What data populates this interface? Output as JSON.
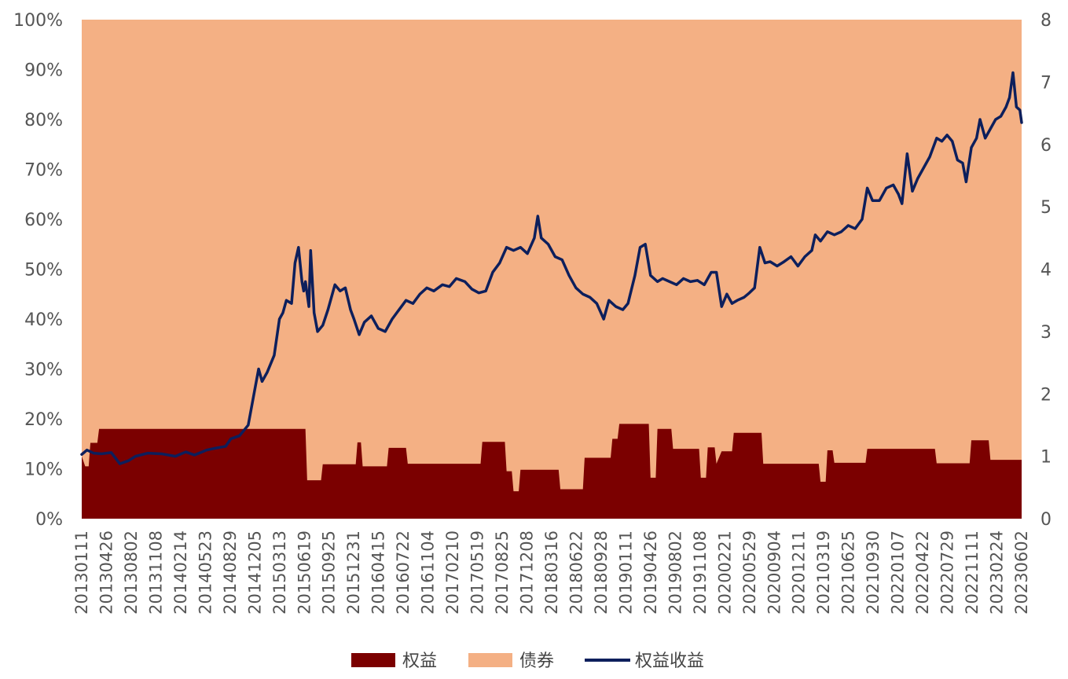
{
  "chart_data": {
    "type": "area",
    "title": "",
    "colors": {
      "equity": "#7b0000",
      "bond": "#f4b084",
      "equity_return": "#0d1f5c"
    },
    "legend_position": "bottom",
    "grid": false,
    "y_left": {
      "range": [
        0,
        100
      ],
      "ticks": [
        "0%",
        "10%",
        "20%",
        "30%",
        "40%",
        "50%",
        "60%",
        "70%",
        "80%",
        "90%",
        "100%"
      ]
    },
    "y_right": {
      "range": [
        0,
        8
      ],
      "ticks": [
        "0",
        "1",
        "2",
        "3",
        "4",
        "5",
        "6",
        "7",
        "8"
      ]
    },
    "x_range": [
      "2013-01-11",
      "2023-06-02"
    ],
    "x_ticks": [
      "20130111",
      "20130426",
      "20130802",
      "20131108",
      "20140214",
      "20140523",
      "20140829",
      "20141205",
      "20150313",
      "20150619",
      "20150925",
      "20151231",
      "20160415",
      "20160722",
      "20161104",
      "20170210",
      "20170519",
      "20170825",
      "20171208",
      "20180316",
      "20180622",
      "20180928",
      "20190111",
      "20190426",
      "20190802",
      "20191108",
      "20200221",
      "20200529",
      "20200904",
      "20201211",
      "20210319",
      "20210625",
      "20210930",
      "20220107",
      "20220422",
      "20220729",
      "20221111",
      "20230224",
      "20230602"
    ],
    "series": [
      {
        "name": "权益",
        "kind": "stacked-area",
        "points": [
          [
            "2013-01-11",
            12.5
          ],
          [
            "2013-01-25",
            10.5
          ],
          [
            "2013-02-08",
            10.5
          ],
          [
            "2013-02-15",
            15.2
          ],
          [
            "2013-03-15",
            15.2
          ],
          [
            "2013-03-22",
            18.0
          ],
          [
            "2015-07-03",
            18.0
          ],
          [
            "2015-07-10",
            7.7
          ],
          [
            "2015-09-04",
            7.7
          ],
          [
            "2015-09-11",
            10.9
          ],
          [
            "2016-01-22",
            10.9
          ],
          [
            "2016-01-29",
            15.3
          ],
          [
            "2016-02-12",
            15.3
          ],
          [
            "2016-02-19",
            10.5
          ],
          [
            "2016-05-27",
            10.5
          ],
          [
            "2016-06-03",
            14.2
          ],
          [
            "2016-08-12",
            14.2
          ],
          [
            "2016-08-19",
            11.0
          ],
          [
            "2017-06-09",
            11.0
          ],
          [
            "2017-06-16",
            15.4
          ],
          [
            "2017-09-15",
            15.4
          ],
          [
            "2017-09-22",
            9.5
          ],
          [
            "2017-10-13",
            9.5
          ],
          [
            "2017-10-20",
            5.5
          ],
          [
            "2017-11-10",
            5.5
          ],
          [
            "2017-11-17",
            9.8
          ],
          [
            "2018-04-20",
            9.8
          ],
          [
            "2018-04-27",
            5.9
          ],
          [
            "2018-07-27",
            5.9
          ],
          [
            "2018-08-03",
            12.2
          ],
          [
            "2018-11-16",
            12.2
          ],
          [
            "2018-11-23",
            16.0
          ],
          [
            "2018-12-14",
            16.0
          ],
          [
            "2018-12-21",
            19.0
          ],
          [
            "2019-04-19",
            19.0
          ],
          [
            "2019-04-26",
            8.2
          ],
          [
            "2019-05-17",
            8.2
          ],
          [
            "2019-05-24",
            18.0
          ],
          [
            "2019-07-19",
            18.0
          ],
          [
            "2019-07-26",
            14.0
          ],
          [
            "2019-11-08",
            14.0
          ],
          [
            "2019-11-15",
            8.2
          ],
          [
            "2019-12-06",
            8.2
          ],
          [
            "2019-12-13",
            14.3
          ],
          [
            "2020-01-10",
            14.3
          ],
          [
            "2020-01-17",
            11.0
          ],
          [
            "2020-02-07",
            13.5
          ],
          [
            "2020-03-20",
            13.5
          ],
          [
            "2020-03-27",
            17.2
          ],
          [
            "2020-07-17",
            17.2
          ],
          [
            "2020-07-24",
            11.0
          ],
          [
            "2021-03-05",
            11.0
          ],
          [
            "2021-03-12",
            7.4
          ],
          [
            "2021-04-02",
            7.4
          ],
          [
            "2021-04-09",
            13.7
          ],
          [
            "2021-04-30",
            13.7
          ],
          [
            "2021-05-07",
            11.2
          ],
          [
            "2021-09-10",
            11.2
          ],
          [
            "2021-09-17",
            14.0
          ],
          [
            "2022-06-17",
            14.0
          ],
          [
            "2022-06-24",
            11.1
          ],
          [
            "2022-11-04",
            11.1
          ],
          [
            "2022-11-11",
            15.7
          ],
          [
            "2023-01-20",
            15.7
          ],
          [
            "2023-01-27",
            11.8
          ],
          [
            "2023-06-02",
            11.8
          ]
        ]
      },
      {
        "name": "债券",
        "kind": "stacked-area",
        "fills_to": 100
      },
      {
        "name": "权益收益",
        "kind": "line",
        "axis": "right",
        "points": [
          [
            "2013-01-11",
            1.03
          ],
          [
            "2013-02-01",
            1.1
          ],
          [
            "2013-03-01",
            1.05
          ],
          [
            "2013-04-01",
            1.04
          ],
          [
            "2013-05-10",
            1.06
          ],
          [
            "2013-06-14",
            0.88
          ],
          [
            "2013-07-19",
            0.93
          ],
          [
            "2013-08-16",
            1.0
          ],
          [
            "2013-10-04",
            1.05
          ],
          [
            "2013-11-29",
            1.04
          ],
          [
            "2014-01-24",
            1.0
          ],
          [
            "2014-03-07",
            1.07
          ],
          [
            "2014-04-11",
            1.02
          ],
          [
            "2014-05-30",
            1.1
          ],
          [
            "2014-07-04",
            1.13
          ],
          [
            "2014-08-15",
            1.16
          ],
          [
            "2014-09-05",
            1.28
          ],
          [
            "2014-10-10",
            1.33
          ],
          [
            "2014-11-14",
            1.5
          ],
          [
            "2014-12-05",
            1.95
          ],
          [
            "2014-12-26",
            2.4
          ],
          [
            "2015-01-09",
            2.2
          ],
          [
            "2015-01-30",
            2.35
          ],
          [
            "2015-02-27",
            2.62
          ],
          [
            "2015-03-20",
            3.2
          ],
          [
            "2015-04-03",
            3.3
          ],
          [
            "2015-04-17",
            3.5
          ],
          [
            "2015-05-08",
            3.45
          ],
          [
            "2015-05-22",
            4.1
          ],
          [
            "2015-06-05",
            4.35
          ],
          [
            "2015-06-19",
            3.8
          ],
          [
            "2015-06-26",
            3.65
          ],
          [
            "2015-07-03",
            3.8
          ],
          [
            "2015-07-10",
            3.6
          ],
          [
            "2015-07-17",
            3.4
          ],
          [
            "2015-07-24",
            4.3
          ],
          [
            "2015-08-07",
            3.3
          ],
          [
            "2015-08-21",
            3.0
          ],
          [
            "2015-09-11",
            3.1
          ],
          [
            "2015-10-02",
            3.35
          ],
          [
            "2015-10-30",
            3.75
          ],
          [
            "2015-11-20",
            3.65
          ],
          [
            "2015-12-11",
            3.7
          ],
          [
            "2016-01-01",
            3.35
          ],
          [
            "2016-01-15",
            3.2
          ],
          [
            "2016-02-05",
            2.95
          ],
          [
            "2016-02-26",
            3.15
          ],
          [
            "2016-03-25",
            3.25
          ],
          [
            "2016-04-22",
            3.05
          ],
          [
            "2016-05-20",
            3.0
          ],
          [
            "2016-06-17",
            3.2
          ],
          [
            "2016-07-15",
            3.35
          ],
          [
            "2016-08-12",
            3.5
          ],
          [
            "2016-09-09",
            3.45
          ],
          [
            "2016-10-07",
            3.6
          ],
          [
            "2016-11-04",
            3.7
          ],
          [
            "2016-12-02",
            3.65
          ],
          [
            "2017-01-06",
            3.75
          ],
          [
            "2017-02-03",
            3.72
          ],
          [
            "2017-03-03",
            3.85
          ],
          [
            "2017-04-07",
            3.8
          ],
          [
            "2017-05-05",
            3.68
          ],
          [
            "2017-06-02",
            3.62
          ],
          [
            "2017-06-30",
            3.65
          ],
          [
            "2017-07-28",
            3.95
          ],
          [
            "2017-08-25",
            4.1
          ],
          [
            "2017-09-22",
            4.35
          ],
          [
            "2017-10-20",
            4.3
          ],
          [
            "2017-11-17",
            4.35
          ],
          [
            "2017-12-15",
            4.25
          ],
          [
            "2018-01-12",
            4.5
          ],
          [
            "2018-01-26",
            4.85
          ],
          [
            "2018-02-09",
            4.5
          ],
          [
            "2018-03-09",
            4.4
          ],
          [
            "2018-04-06",
            4.2
          ],
          [
            "2018-05-04",
            4.15
          ],
          [
            "2018-06-01",
            3.9
          ],
          [
            "2018-06-29",
            3.7
          ],
          [
            "2018-07-27",
            3.6
          ],
          [
            "2018-08-24",
            3.55
          ],
          [
            "2018-09-21",
            3.45
          ],
          [
            "2018-10-19",
            3.2
          ],
          [
            "2018-11-09",
            3.5
          ],
          [
            "2018-12-07",
            3.4
          ],
          [
            "2019-01-04",
            3.35
          ],
          [
            "2019-01-25",
            3.45
          ],
          [
            "2019-02-22",
            3.9
          ],
          [
            "2019-03-15",
            4.35
          ],
          [
            "2019-04-05",
            4.4
          ],
          [
            "2019-04-26",
            3.9
          ],
          [
            "2019-05-24",
            3.8
          ],
          [
            "2019-06-14",
            3.85
          ],
          [
            "2019-07-12",
            3.8
          ],
          [
            "2019-08-09",
            3.75
          ],
          [
            "2019-09-06",
            3.85
          ],
          [
            "2019-10-04",
            3.8
          ],
          [
            "2019-11-01",
            3.82
          ],
          [
            "2019-11-29",
            3.75
          ],
          [
            "2019-12-27",
            3.95
          ],
          [
            "2020-01-17",
            3.95
          ],
          [
            "2020-02-07",
            3.4
          ],
          [
            "2020-02-28",
            3.6
          ],
          [
            "2020-03-20",
            3.45
          ],
          [
            "2020-04-10",
            3.5
          ],
          [
            "2020-05-08",
            3.55
          ],
          [
            "2020-05-29",
            3.62
          ],
          [
            "2020-06-19",
            3.7
          ],
          [
            "2020-07-10",
            4.35
          ],
          [
            "2020-07-31",
            4.1
          ],
          [
            "2020-08-21",
            4.12
          ],
          [
            "2020-09-18",
            4.05
          ],
          [
            "2020-10-16",
            4.12
          ],
          [
            "2020-11-13",
            4.2
          ],
          [
            "2020-12-11",
            4.05
          ],
          [
            "2021-01-08",
            4.2
          ],
          [
            "2021-02-05",
            4.3
          ],
          [
            "2021-02-19",
            4.55
          ],
          [
            "2021-03-12",
            4.45
          ],
          [
            "2021-04-09",
            4.6
          ],
          [
            "2021-05-07",
            4.55
          ],
          [
            "2021-06-04",
            4.6
          ],
          [
            "2021-07-02",
            4.7
          ],
          [
            "2021-07-30",
            4.65
          ],
          [
            "2021-08-27",
            4.8
          ],
          [
            "2021-09-17",
            5.3
          ],
          [
            "2021-10-08",
            5.1
          ],
          [
            "2021-11-05",
            5.1
          ],
          [
            "2021-12-03",
            5.3
          ],
          [
            "2021-12-31",
            5.35
          ],
          [
            "2022-01-21",
            5.2
          ],
          [
            "2022-02-04",
            5.05
          ],
          [
            "2022-02-25",
            5.85
          ],
          [
            "2022-03-18",
            5.25
          ],
          [
            "2022-04-08",
            5.45
          ],
          [
            "2022-04-29",
            5.6
          ],
          [
            "2022-05-27",
            5.8
          ],
          [
            "2022-06-24",
            6.1
          ],
          [
            "2022-07-15",
            6.05
          ],
          [
            "2022-08-05",
            6.15
          ],
          [
            "2022-08-26",
            6.05
          ],
          [
            "2022-09-16",
            5.75
          ],
          [
            "2022-10-07",
            5.7
          ],
          [
            "2022-10-21",
            5.4
          ],
          [
            "2022-11-11",
            5.95
          ],
          [
            "2022-12-02",
            6.1
          ],
          [
            "2022-12-16",
            6.4
          ],
          [
            "2023-01-06",
            6.1
          ],
          [
            "2023-01-27",
            6.25
          ],
          [
            "2023-02-17",
            6.4
          ],
          [
            "2023-03-10",
            6.45
          ],
          [
            "2023-03-31",
            6.6
          ],
          [
            "2023-04-14",
            6.75
          ],
          [
            "2023-04-28",
            7.15
          ],
          [
            "2023-05-12",
            6.6
          ],
          [
            "2023-05-26",
            6.55
          ],
          [
            "2023-06-02",
            6.35
          ]
        ]
      }
    ]
  }
}
